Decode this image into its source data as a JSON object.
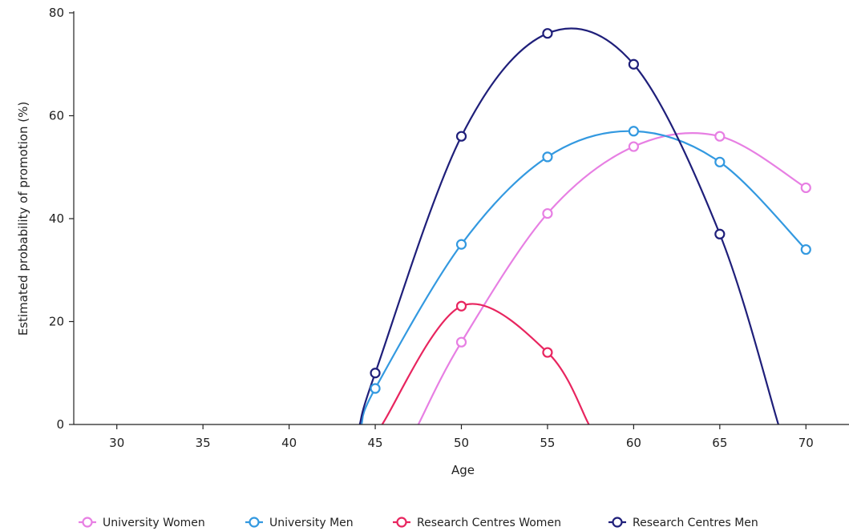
{
  "chart_data": {
    "type": "line",
    "xlabel": "Age",
    "ylabel": "Estimated probability of promotion (%)",
    "xlim": [
      27.5,
      72.5
    ],
    "ylim": [
      0,
      80
    ],
    "x_ticks": [
      30,
      35,
      40,
      45,
      50,
      55,
      60,
      65,
      70
    ],
    "y_ticks": [
      0,
      20,
      40,
      60,
      80
    ],
    "grid": false,
    "legend_position": "bottom",
    "series": [
      {
        "name": "University Women",
        "color": "#e77fe3",
        "points": [
          [
            50,
            16
          ],
          [
            55,
            41
          ],
          [
            60,
            54
          ],
          [
            65,
            56
          ],
          [
            70,
            46
          ]
        ],
        "curve": [
          [
            47.5,
            0
          ],
          [
            50,
            16
          ],
          [
            55,
            41
          ],
          [
            60,
            54
          ],
          [
            65,
            56
          ],
          [
            70,
            46
          ]
        ]
      },
      {
        "name": "University Men",
        "color": "#3399e0",
        "points": [
          [
            45,
            7
          ],
          [
            50,
            35
          ],
          [
            55,
            52
          ],
          [
            60,
            57
          ],
          [
            65,
            51
          ],
          [
            70,
            34
          ]
        ],
        "curve": [
          [
            44.2,
            0
          ],
          [
            45,
            7
          ],
          [
            50,
            35
          ],
          [
            55,
            52
          ],
          [
            60,
            57
          ],
          [
            65,
            51
          ],
          [
            70,
            34
          ]
        ]
      },
      {
        "name": "Research Centres Women",
        "color": "#e8255f",
        "points": [
          [
            50,
            23
          ],
          [
            55,
            14
          ]
        ],
        "curve": [
          [
            45.4,
            0
          ],
          [
            50,
            23
          ],
          [
            55,
            14
          ],
          [
            57.4,
            0
          ]
        ]
      },
      {
        "name": "Research Centres Men",
        "color": "#1f1f7a",
        "points": [
          [
            45,
            10
          ],
          [
            50,
            56
          ],
          [
            55,
            76
          ],
          [
            60,
            70
          ],
          [
            65,
            37
          ]
        ],
        "curve": [
          [
            44.1,
            0
          ],
          [
            45,
            10
          ],
          [
            50,
            56
          ],
          [
            55,
            76
          ],
          [
            60,
            70
          ],
          [
            65,
            37
          ],
          [
            68.4,
            0
          ]
        ]
      }
    ]
  }
}
